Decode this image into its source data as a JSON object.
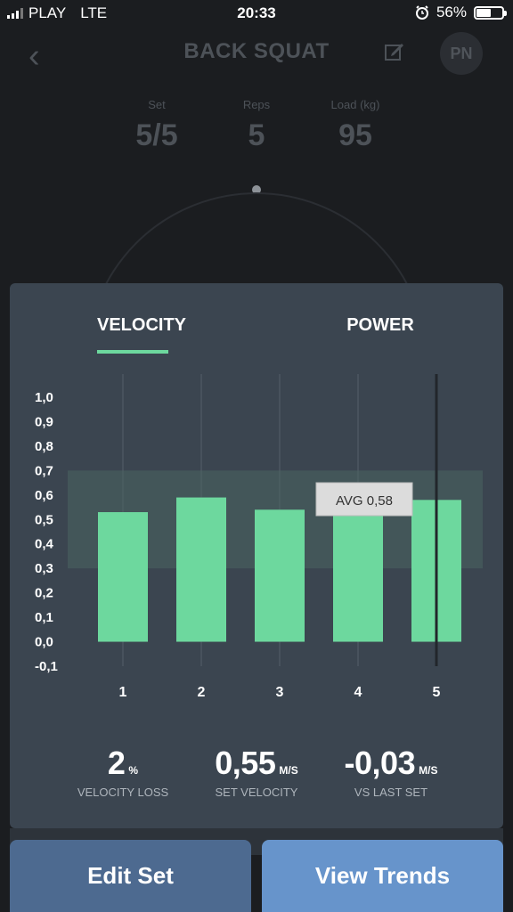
{
  "status_bar": {
    "carrier": "PLAY",
    "network": "LTE",
    "time": "20:33",
    "battery": "56%",
    "battery_level": 0.56
  },
  "header": {
    "title": "BACK SQUAT",
    "avatar": "PN"
  },
  "set_stats": [
    {
      "label": "Set",
      "value": "5/5"
    },
    {
      "label": "Reps",
      "value": "5"
    },
    {
      "label": "Load (kg)",
      "value": "95"
    }
  ],
  "tabs": {
    "velocity": "VELOCITY",
    "power": "POWER"
  },
  "summary": {
    "loss_value": "2",
    "loss_unit": "%",
    "loss_label": "VELOCITY LOSS",
    "set_value": "0,55",
    "set_unit": "M/S",
    "set_label": "SET VELOCITY",
    "vs_value": "-0,03",
    "vs_unit": "M/S",
    "vs_label": "VS LAST SET"
  },
  "buttons": {
    "edit": "Edit Set",
    "trends": "View Trends"
  },
  "colors": {
    "bar": "#6dd89e",
    "band": "#4a6460",
    "card": "#3b4550",
    "edit_button": "#4d6a90",
    "trends_button": "#6794cb"
  },
  "chart_data": {
    "type": "bar",
    "categories": [
      "1",
      "2",
      "3",
      "4",
      "5"
    ],
    "values": [
      0.53,
      0.59,
      0.54,
      0.52,
      0.58
    ],
    "ylim": [
      -0.1,
      1.0
    ],
    "yticks": [
      "1,0",
      "0,9",
      "0,8",
      "0,7",
      "0,6",
      "0,5",
      "0,4",
      "0,3",
      "0,2",
      "0,1",
      "0,0",
      "-0,1"
    ],
    "band": [
      0.3,
      0.7
    ],
    "tooltip": "AVG 0,58",
    "selected_index": 4
  }
}
